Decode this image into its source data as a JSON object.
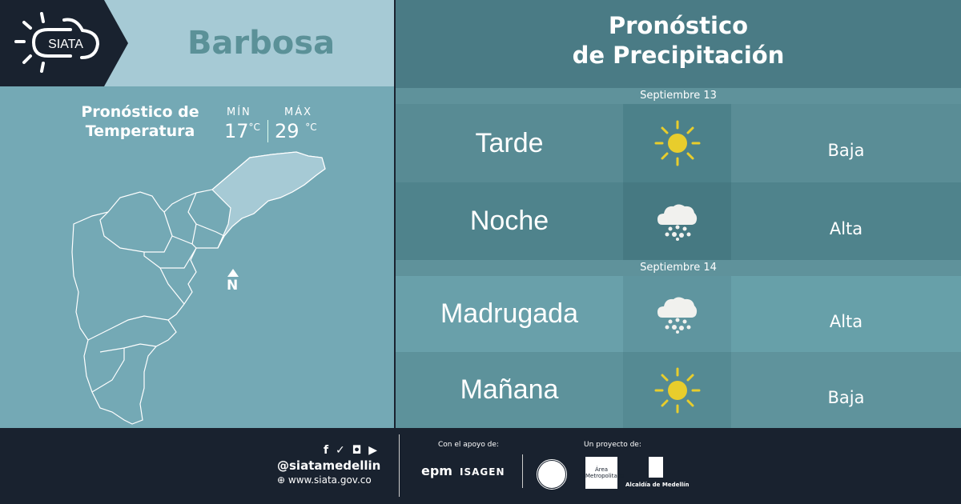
{
  "logo": {
    "text": "SIATA"
  },
  "municipality": "Barbosa",
  "temperature": {
    "title_line1": "Pronóstico de",
    "title_line2": "Temperatura",
    "min_label": "MÍN",
    "min_value": "17",
    "max_label": "MÁX",
    "max_value": "29",
    "unit": "°C"
  },
  "map": {
    "north_label": "N"
  },
  "precipitation": {
    "title_line1": "Pronóstico",
    "title_line2": "de Precipitación",
    "days": [
      {
        "date": "Septiembre 13",
        "periods": [
          {
            "period": "Tarde",
            "icon": "sun-icon",
            "level": "Baja"
          },
          {
            "period": "Noche",
            "icon": "rain-cloud-icon",
            "level": "Alta"
          }
        ]
      },
      {
        "date": "Septiembre 14",
        "periods": [
          {
            "period": "Madrugada",
            "icon": "rain-cloud-icon",
            "level": "Alta"
          },
          {
            "period": "Mañana",
            "icon": "sun-icon",
            "level": "Baja"
          }
        ]
      }
    ]
  },
  "footer": {
    "handle": "@siatamedellin",
    "website": "www.siata.gov.co",
    "support_label": "Con el apoyo de:",
    "project_label": "Un proyecto de:",
    "sponsors": [
      "epm",
      "ISAGEN"
    ],
    "partners": [
      "Área Metropolitana",
      "Alcaldía de Medellín"
    ]
  },
  "colors": {
    "sun": "#e8cd2c",
    "dark": "#19222f",
    "header": "#4a7b85"
  }
}
